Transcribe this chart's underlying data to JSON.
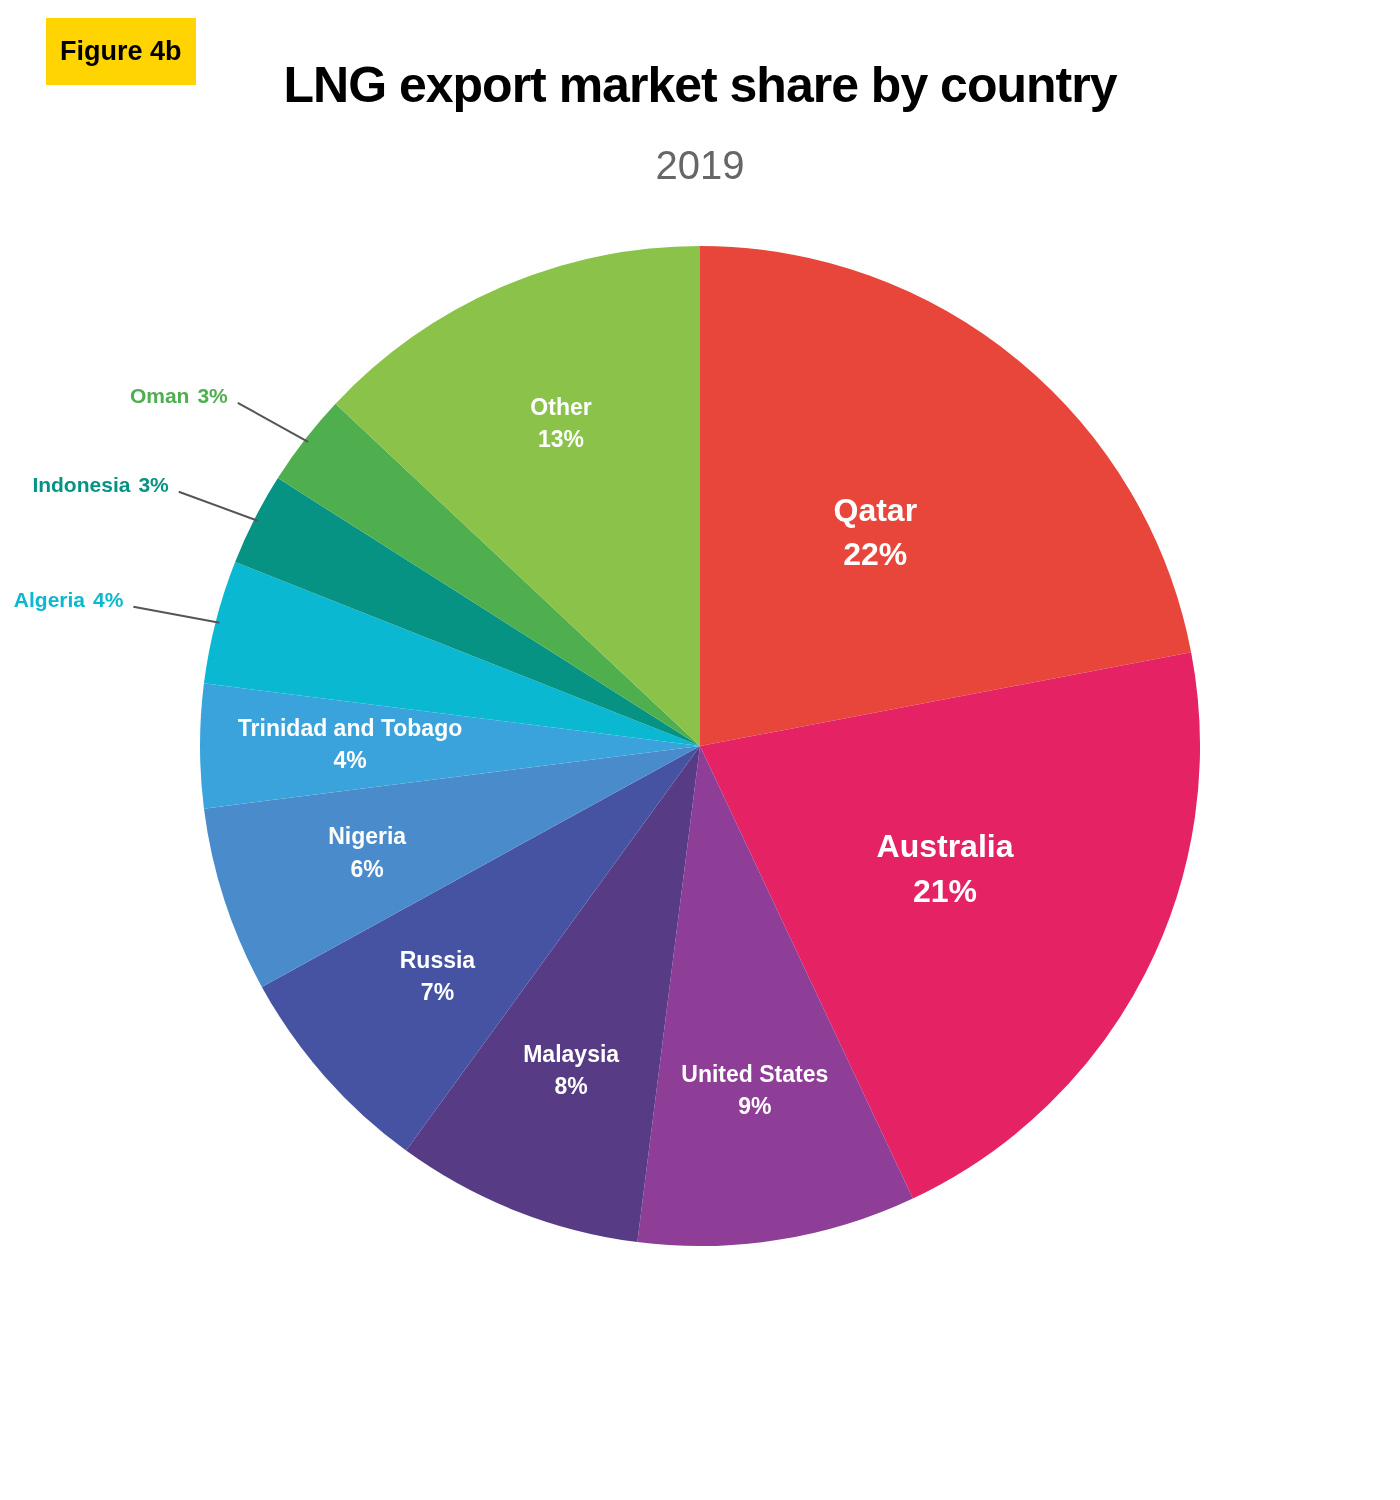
{
  "chart_data": {
    "type": "pie",
    "title": "LNG export market share by country",
    "subtitle": "2019",
    "annotations": [
      "Figure 4b"
    ],
    "categories": [
      "Qatar",
      "Australia",
      "United States",
      "Malaysia",
      "Russia",
      "Nigeria",
      "Trinidad and Tobago",
      "Algeria",
      "Indonesia",
      "Oman",
      "Other"
    ],
    "values": [
      22,
      21,
      9,
      8,
      7,
      6,
      4,
      4,
      3,
      3,
      13
    ],
    "colors": [
      "#e8463a",
      "#e52264",
      "#8e3e97",
      "#573b85",
      "#4553a2",
      "#4a8ccb",
      "#3aa3dc",
      "#0bb8d1",
      "#079384",
      "#4fae4e",
      "#8bc34a"
    ],
    "value_labels": [
      "22%",
      "21%",
      "9%",
      "8%",
      "7%",
      "6%",
      "4%",
      "4%",
      "3%",
      "3%",
      "13%"
    ],
    "legend": false
  }
}
